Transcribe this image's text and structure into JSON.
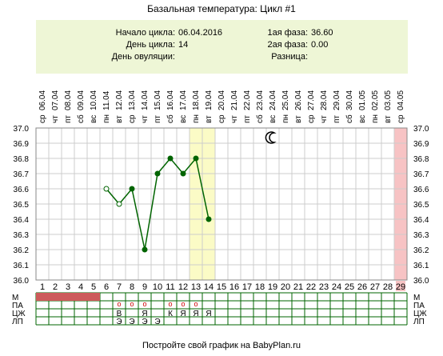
{
  "title": "Базальная температура: Цикл #1",
  "info": {
    "cycle_start_label": "Начало цикла:",
    "cycle_start_value": "06.04.2016",
    "cycle_day_label": "День цикла:",
    "cycle_day_value": "14",
    "ovulation_day_label": "День овуляции:",
    "ovulation_day_value": "",
    "phase1_label": "1ая фаза:",
    "phase1_value": "36.60",
    "phase2_label": "2ая фаза:",
    "phase2_value": "0.00",
    "difference_label": "Разница:",
    "difference_value": ""
  },
  "chart_data": {
    "type": "line",
    "ylim": [
      36.0,
      37.0
    ],
    "y_ticks": [
      "37.0",
      "36.9",
      "36.8",
      "36.7",
      "36.6",
      "36.5",
      "36.4",
      "36.3",
      "36.2",
      "36.1",
      "36.0"
    ],
    "dates": [
      "06.04",
      "07.04",
      "08.04",
      "09.04",
      "10.04",
      "11.04",
      "12.04",
      "13.04",
      "14.04",
      "15.04",
      "16.04",
      "17.04",
      "18.04",
      "19.04",
      "20.04",
      "21.04",
      "22.04",
      "23.04",
      "24.04",
      "25.04",
      "26.04",
      "27.04",
      "28.04",
      "29.04",
      "30.04",
      "01.05",
      "02.05",
      "03.05",
      "04.05"
    ],
    "weekdays": [
      "ср",
      "чт",
      "пт",
      "сб",
      "вс",
      "пн",
      "вт",
      "ср",
      "чт",
      "пт",
      "сб",
      "вс",
      "пн",
      "вт",
      "ср",
      "чт",
      "пт",
      "сб",
      "вс",
      "пн",
      "вт",
      "ср",
      "чт",
      "пт",
      "сб",
      "вс",
      "пн",
      "вт",
      "ср"
    ],
    "days": [
      "1",
      "2",
      "3",
      "4",
      "5",
      "6",
      "7",
      "8",
      "9",
      "10",
      "11",
      "12",
      "13",
      "14",
      "15",
      "16",
      "17",
      "18",
      "19",
      "20",
      "21",
      "22",
      "23",
      "24",
      "25",
      "26",
      "27",
      "28",
      "29"
    ],
    "series": [
      {
        "x": [
          6,
          7,
          8,
          9,
          10,
          11,
          12,
          13,
          14
        ],
        "values": [
          36.6,
          36.5,
          36.6,
          36.2,
          36.7,
          36.8,
          36.7,
          36.8,
          36.4
        ],
        "hollow": [
          true,
          true,
          false,
          false,
          false,
          false,
          false,
          false,
          false
        ]
      }
    ],
    "highlight_days": [
      13,
      14
    ],
    "last_day_highlight": 29,
    "moon_day": 19,
    "colors": {
      "line": "#006400",
      "highlight": "#fbfbc6",
      "last_day": "#f7c3c4",
      "period": "#cd5b5b",
      "grid": "#cccccc"
    }
  },
  "table": {
    "row_labels": [
      "М",
      "ПА",
      "ЦЖ",
      "ЛП"
    ],
    "period_days": [
      1,
      2,
      3,
      4,
      5
    ],
    "pa_days": [
      7,
      8,
      9,
      11,
      12,
      13
    ],
    "pa_marker": "o",
    "cz": [
      {
        "day": 7,
        "text": "В"
      },
      {
        "day": 9,
        "text": "Я"
      },
      {
        "day": 11,
        "text": "К"
      },
      {
        "day": 12,
        "text": "Я"
      },
      {
        "day": 13,
        "text": "Я"
      },
      {
        "day": 14,
        "text": "Я"
      }
    ],
    "lp": [
      {
        "day": 7,
        "text": "Э"
      },
      {
        "day": 8,
        "text": "Э"
      },
      {
        "day": 9,
        "text": "Э"
      },
      {
        "day": 10,
        "text": "Э"
      }
    ]
  },
  "footer": "Постройте свой график на BabyPlan.ru"
}
